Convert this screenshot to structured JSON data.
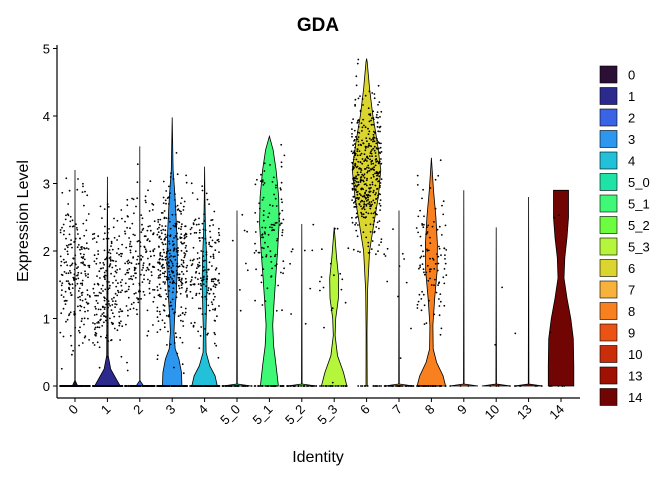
{
  "chart_data": {
    "type": "violin",
    "title": "GDA",
    "xlabel": "Identity",
    "ylabel": "Expression Level",
    "ylim": [
      -0.25,
      5.1
    ],
    "yticks": [
      0,
      1,
      2,
      3,
      4,
      5
    ],
    "grid": false,
    "legend_position": "right",
    "categories": [
      "0",
      "1",
      "2",
      "3",
      "4",
      "5_0",
      "5_1",
      "5_2",
      "5_3",
      "6",
      "7",
      "8",
      "9",
      "10",
      "13",
      "14"
    ],
    "colors": [
      "#2b0f35",
      "#2d2a8e",
      "#3a64e6",
      "#2d96ee",
      "#22c1d9",
      "#1ee3a6",
      "#3ff876",
      "#6cfe3e",
      "#b5f53c",
      "#dbd52f",
      "#f6b23a",
      "#f9801f",
      "#ea5314",
      "#c92d09",
      "#9f1203",
      "#700503"
    ],
    "series": [
      {
        "name": "0",
        "max": 3.2,
        "fraction_nonzero": 0.55,
        "expressed_median": 1.7,
        "n_points": 360,
        "violin": [
          [
            0,
            0.18
          ],
          [
            0.08,
            0.01
          ],
          [
            3.2,
            0.0
          ]
        ]
      },
      {
        "name": "1",
        "max": 3.1,
        "fraction_nonzero": 0.6,
        "expressed_median": 1.5,
        "n_points": 360,
        "violin": [
          [
            0,
            0.85
          ],
          [
            0.1,
            0.6
          ],
          [
            0.25,
            0.22
          ],
          [
            0.45,
            0.05
          ],
          [
            3.1,
            0.0
          ]
        ]
      },
      {
        "name": "2",
        "max": 3.55,
        "fraction_nonzero": 0.55,
        "expressed_median": 1.9,
        "n_points": 300,
        "violin": [
          [
            0,
            0.25
          ],
          [
            0.08,
            0.01
          ],
          [
            3.55,
            0.0
          ]
        ]
      },
      {
        "name": "3",
        "max": 3.98,
        "fraction_nonzero": 0.7,
        "expressed_median": 1.8,
        "n_points": 480,
        "violin": [
          [
            0,
            0.65
          ],
          [
            0.2,
            0.62
          ],
          [
            0.4,
            0.45
          ],
          [
            0.55,
            0.2
          ],
          [
            0.8,
            0.12
          ],
          [
            1.0,
            0.16
          ],
          [
            1.4,
            0.28
          ],
          [
            1.8,
            0.35
          ],
          [
            2.2,
            0.32
          ],
          [
            2.6,
            0.24
          ],
          [
            2.9,
            0.16
          ],
          [
            3.2,
            0.06
          ],
          [
            3.98,
            0.0
          ]
        ]
      },
      {
        "name": "4",
        "max": 3.25,
        "fraction_nonzero": 0.55,
        "expressed_median": 1.7,
        "n_points": 340,
        "violin": [
          [
            0,
            0.85
          ],
          [
            0.15,
            0.7
          ],
          [
            0.3,
            0.35
          ],
          [
            0.5,
            0.1
          ],
          [
            0.8,
            0.08
          ],
          [
            1.1,
            0.12
          ],
          [
            1.5,
            0.16
          ],
          [
            1.9,
            0.14
          ],
          [
            2.3,
            0.06
          ],
          [
            2.8,
            0.02
          ],
          [
            3.25,
            0.0
          ]
        ]
      },
      {
        "name": "5_0",
        "max": 2.6,
        "fraction_nonzero": 0.3,
        "expressed_median": 1.8,
        "n_points": 50,
        "violin": [
          [
            0,
            0.95
          ],
          [
            0.03,
            0.02
          ],
          [
            2.6,
            0.0
          ]
        ]
      },
      {
        "name": "5_1",
        "max": 3.7,
        "fraction_nonzero": 0.75,
        "expressed_median": 2.4,
        "n_points": 150,
        "violin": [
          [
            0,
            0.6
          ],
          [
            0.3,
            0.45
          ],
          [
            0.6,
            0.28
          ],
          [
            0.9,
            0.22
          ],
          [
            1.2,
            0.3
          ],
          [
            1.6,
            0.42
          ],
          [
            2.0,
            0.55
          ],
          [
            2.4,
            0.65
          ],
          [
            2.8,
            0.62
          ],
          [
            3.2,
            0.45
          ],
          [
            3.5,
            0.25
          ],
          [
            3.7,
            0.0
          ]
        ]
      },
      {
        "name": "5_2",
        "max": 2.4,
        "fraction_nonzero": 0.2,
        "expressed_median": 1.5,
        "n_points": 40,
        "violin": [
          [
            0,
            0.95
          ],
          [
            0.03,
            0.02
          ],
          [
            2.4,
            0.0
          ]
        ]
      },
      {
        "name": "5_3",
        "max": 2.35,
        "fraction_nonzero": 0.5,
        "expressed_median": 1.5,
        "n_points": 40,
        "violin": [
          [
            0,
            0.85
          ],
          [
            0.2,
            0.62
          ],
          [
            0.45,
            0.22
          ],
          [
            0.75,
            0.06
          ],
          [
            1.0,
            0.1
          ],
          [
            1.3,
            0.28
          ],
          [
            1.6,
            0.3
          ],
          [
            1.9,
            0.16
          ],
          [
            2.35,
            0.0
          ]
        ]
      },
      {
        "name": "6",
        "max": 4.85,
        "fraction_nonzero": 0.97,
        "expressed_median": 3.2,
        "n_points": 440,
        "violin": [
          [
            0,
            0.04
          ],
          [
            0.8,
            0.03
          ],
          [
            1.4,
            0.06
          ],
          [
            2.0,
            0.2
          ],
          [
            2.4,
            0.48
          ],
          [
            2.8,
            0.78
          ],
          [
            3.2,
            0.95
          ],
          [
            3.6,
            0.72
          ],
          [
            4.0,
            0.42
          ],
          [
            4.4,
            0.2
          ],
          [
            4.8,
            0.04
          ],
          [
            4.85,
            0.0
          ]
        ]
      },
      {
        "name": "7",
        "max": 2.6,
        "fraction_nonzero": 0.25,
        "expressed_median": 1.6,
        "n_points": 45,
        "violin": [
          [
            0,
            0.95
          ],
          [
            0.03,
            0.02
          ],
          [
            2.6,
            0.0
          ]
        ]
      },
      {
        "name": "8",
        "max": 3.38,
        "fraction_nonzero": 0.7,
        "expressed_median": 1.9,
        "n_points": 150,
        "violin": [
          [
            0,
            0.95
          ],
          [
            0.15,
            0.78
          ],
          [
            0.35,
            0.35
          ],
          [
            0.55,
            0.12
          ],
          [
            0.9,
            0.1
          ],
          [
            1.3,
            0.22
          ],
          [
            1.7,
            0.38
          ],
          [
            2.1,
            0.4
          ],
          [
            2.5,
            0.3
          ],
          [
            2.9,
            0.14
          ],
          [
            3.38,
            0.0
          ]
        ]
      },
      {
        "name": "9",
        "max": 2.9,
        "fraction_nonzero": 0.05,
        "expressed_median": 2.0,
        "n_points": 3,
        "violin": [
          [
            0,
            0.95
          ],
          [
            0.03,
            0.02
          ],
          [
            2.9,
            0.0
          ]
        ]
      },
      {
        "name": "10",
        "max": 2.35,
        "fraction_nonzero": 0.1,
        "expressed_median": 1.5,
        "n_points": 6,
        "violin": [
          [
            0,
            0.95
          ],
          [
            0.03,
            0.02
          ],
          [
            2.35,
            0.0
          ]
        ]
      },
      {
        "name": "13",
        "max": 2.8,
        "fraction_nonzero": 0.1,
        "expressed_median": 1.9,
        "n_points": 8,
        "violin": [
          [
            0,
            0.95
          ],
          [
            0.03,
            0.02
          ],
          [
            2.8,
            0.0
          ]
        ]
      },
      {
        "name": "14",
        "max": 2.9,
        "fraction_nonzero": 0.4,
        "expressed_median": 1.8,
        "n_points": 10,
        "violin": [
          [
            0,
            0.85
          ],
          [
            0.3,
            0.85
          ],
          [
            0.7,
            0.82
          ],
          [
            1.0,
            0.65
          ],
          [
            1.3,
            0.4
          ],
          [
            1.6,
            0.2
          ],
          [
            1.9,
            0.25
          ],
          [
            2.2,
            0.4
          ],
          [
            2.5,
            0.5
          ],
          [
            2.9,
            0.5
          ]
        ]
      }
    ]
  }
}
